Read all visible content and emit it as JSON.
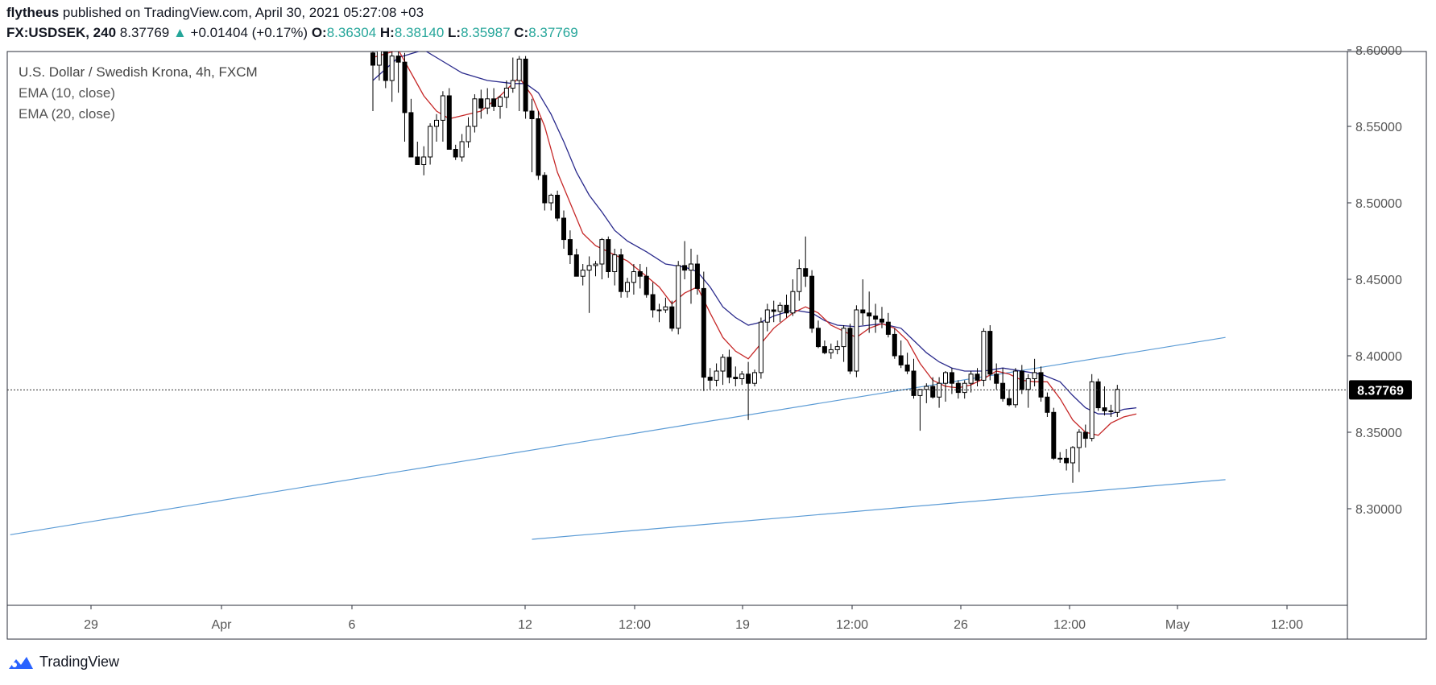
{
  "header": {
    "author": "flytheus",
    "published_text": "published on TradingView.com, April 30, 2021 05:27:08 +03",
    "symbol": "FX:USDSEK, 240",
    "last": "8.37769",
    "change": "+0.01404 (+0.17%)",
    "o_label": "O:",
    "o_value": "8.36304",
    "h_label": "H:",
    "h_value": "8.38140",
    "l_label": "L:",
    "l_value": "8.35987",
    "c_label": "C:",
    "c_value": "8.37769"
  },
  "legend": {
    "title": "U.S. Dollar / Swedish Krona, 4h, FXCM",
    "ema10": "EMA (10, close)",
    "ema20": "EMA (20, close)"
  },
  "footer": {
    "brand": "TradingView"
  },
  "colors": {
    "up_candle_fill": "#ffffff",
    "down_candle_fill": "#000000",
    "ema10": "#c62828",
    "ema20": "#2a2a8c",
    "trendline": "#5b9bd5",
    "last_price_tag": "#000000",
    "up_text": "#26a69a"
  },
  "chart_data": {
    "type": "candlestick",
    "title": "U.S. Dollar / Swedish Krona, 4h, FXCM",
    "ylim": [
      8.28,
      8.6
    ],
    "y_ticks": [
      "8.30000",
      "8.35000",
      "8.40000",
      "8.45000",
      "8.50000",
      "8.55000",
      "8.60000"
    ],
    "x_ticks": [
      "29",
      "Apr",
      "6",
      "12",
      "12:00",
      "19",
      "12:00",
      "26",
      "12:00",
      "May",
      "12:00"
    ],
    "last_price": "8.37769",
    "candles": [
      [
        8.598,
        8.61,
        8.56,
        8.59
      ],
      [
        8.59,
        8.6,
        8.58,
        8.6
      ],
      [
        8.6,
        8.61,
        8.575,
        8.58
      ],
      [
        8.58,
        8.6,
        8.566,
        8.596
      ],
      [
        8.596,
        8.6,
        8.572,
        8.592
      ],
      [
        8.592,
        8.598,
        8.54,
        8.559
      ],
      [
        8.559,
        8.568,
        8.53,
        8.53
      ],
      [
        8.53,
        8.54,
        8.525,
        8.525
      ],
      [
        8.525,
        8.537,
        8.518,
        8.53
      ],
      [
        8.53,
        8.552,
        8.525,
        8.55
      ],
      [
        8.55,
        8.558,
        8.54,
        8.554
      ],
      [
        8.554,
        8.573,
        8.54,
        8.57
      ],
      [
        8.57,
        8.575,
        8.535,
        8.535
      ],
      [
        8.535,
        8.538,
        8.528,
        8.53
      ],
      [
        8.53,
        8.545,
        8.527,
        8.54
      ],
      [
        8.54,
        8.556,
        8.536,
        8.55
      ],
      [
        8.55,
        8.571,
        8.546,
        8.568
      ],
      [
        8.568,
        8.574,
        8.555,
        8.562
      ],
      [
        8.562,
        8.575,
        8.558,
        8.568
      ],
      [
        8.568,
        8.575,
        8.56,
        8.563
      ],
      [
        8.563,
        8.57,
        8.555,
        8.569
      ],
      [
        8.569,
        8.58,
        8.562,
        8.575
      ],
      [
        8.575,
        8.595,
        8.572,
        8.58
      ],
      [
        8.58,
        8.596,
        8.56,
        8.594
      ],
      [
        8.594,
        8.596,
        8.555,
        8.56
      ],
      [
        8.56,
        8.568,
        8.52,
        8.555
      ],
      [
        8.555,
        8.56,
        8.515,
        8.518
      ],
      [
        8.518,
        8.52,
        8.495,
        8.5
      ],
      [
        8.5,
        8.506,
        8.495,
        8.505
      ],
      [
        8.505,
        8.508,
        8.488,
        8.49
      ],
      [
        8.49,
        8.495,
        8.47,
        8.476
      ],
      [
        8.476,
        8.482,
        8.46,
        8.466
      ],
      [
        8.466,
        8.47,
        8.452,
        8.452
      ],
      [
        8.452,
        8.46,
        8.446,
        8.456
      ],
      [
        8.456,
        8.465,
        8.428,
        8.459
      ],
      [
        8.459,
        8.462,
        8.452,
        8.46
      ],
      [
        8.46,
        8.477,
        8.45,
        8.476
      ],
      [
        8.476,
        8.478,
        8.451,
        8.455
      ],
      [
        8.455,
        8.47,
        8.446,
        8.466
      ],
      [
        8.466,
        8.47,
        8.438,
        8.442
      ],
      [
        8.442,
        8.451,
        8.438,
        8.448
      ],
      [
        8.448,
        8.46,
        8.44,
        8.455
      ],
      [
        8.455,
        8.46,
        8.444,
        8.452
      ],
      [
        8.452,
        8.458,
        8.438,
        8.44
      ],
      [
        8.44,
        8.448,
        8.425,
        8.43
      ],
      [
        8.43,
        8.434,
        8.422,
        8.43
      ],
      [
        8.43,
        8.438,
        8.428,
        8.432
      ],
      [
        8.432,
        8.436,
        8.416,
        8.418
      ],
      [
        8.418,
        8.462,
        8.414,
        8.459
      ],
      [
        8.459,
        8.475,
        8.45,
        8.456
      ],
      [
        8.456,
        8.47,
        8.434,
        8.46
      ],
      [
        8.46,
        8.466,
        8.44,
        8.444
      ],
      [
        8.444,
        8.455,
        8.377,
        8.386
      ],
      [
        8.386,
        8.392,
        8.378,
        8.384
      ],
      [
        8.384,
        8.395,
        8.38,
        8.39
      ],
      [
        8.39,
        8.401,
        8.381,
        8.399
      ],
      [
        8.399,
        8.404,
        8.382,
        8.386
      ],
      [
        8.386,
        8.393,
        8.38,
        8.385
      ],
      [
        8.385,
        8.39,
        8.381,
        8.388
      ],
      [
        8.388,
        8.396,
        8.358,
        8.382
      ],
      [
        8.382,
        8.391,
        8.38,
        8.389
      ],
      [
        8.389,
        8.425,
        8.385,
        8.422
      ],
      [
        8.422,
        8.434,
        8.416,
        8.43
      ],
      [
        8.43,
        8.436,
        8.422,
        8.429
      ],
      [
        8.429,
        8.435,
        8.422,
        8.433
      ],
      [
        8.433,
        8.44,
        8.425,
        8.428
      ],
      [
        8.428,
        8.45,
        8.426,
        8.442
      ],
      [
        8.442,
        8.463,
        8.436,
        8.457
      ],
      [
        8.457,
        8.478,
        8.445,
        8.452
      ],
      [
        8.452,
        8.456,
        8.415,
        8.418
      ],
      [
        8.418,
        8.423,
        8.405,
        8.406
      ],
      [
        8.406,
        8.41,
        8.401,
        8.402
      ],
      [
        8.402,
        8.408,
        8.398,
        8.404
      ],
      [
        8.404,
        8.41,
        8.401,
        8.406
      ],
      [
        8.406,
        8.42,
        8.396,
        8.418
      ],
      [
        8.418,
        8.421,
        8.388,
        8.39
      ],
      [
        8.39,
        8.433,
        8.386,
        8.43
      ],
      [
        8.43,
        8.45,
        8.42,
        8.428
      ],
      [
        8.428,
        8.442,
        8.415,
        8.426
      ],
      [
        8.426,
        8.434,
        8.415,
        8.424
      ],
      [
        8.424,
        8.432,
        8.418,
        8.422
      ],
      [
        8.422,
        8.428,
        8.412,
        8.414
      ],
      [
        8.414,
        8.418,
        8.398,
        8.4
      ],
      [
        8.4,
        8.41,
        8.392,
        8.394
      ],
      [
        8.394,
        8.402,
        8.388,
        8.39
      ],
      [
        8.39,
        8.398,
        8.372,
        8.374
      ],
      [
        8.374,
        8.376,
        8.351,
        8.378
      ],
      [
        8.378,
        8.382,
        8.369,
        8.38
      ],
      [
        8.38,
        8.386,
        8.372,
        8.373
      ],
      [
        8.373,
        8.386,
        8.366,
        8.382
      ],
      [
        8.382,
        8.39,
        8.37,
        8.389
      ],
      [
        8.389,
        8.392,
        8.375,
        8.382
      ],
      [
        8.382,
        8.384,
        8.372,
        8.376
      ],
      [
        8.376,
        8.384,
        8.372,
        8.382
      ],
      [
        8.382,
        8.39,
        8.376,
        8.388
      ],
      [
        8.388,
        8.392,
        8.38,
        8.384
      ],
      [
        8.384,
        8.418,
        8.38,
        8.416
      ],
      [
        8.416,
        8.42,
        8.384,
        8.388
      ],
      [
        8.388,
        8.395,
        8.378,
        8.382
      ],
      [
        8.382,
        8.392,
        8.37,
        8.372
      ],
      [
        8.372,
        8.378,
        8.367,
        8.368
      ],
      [
        8.368,
        8.392,
        8.366,
        8.39
      ],
      [
        8.39,
        8.394,
        8.375,
        8.378
      ],
      [
        8.378,
        8.388,
        8.366,
        8.385
      ],
      [
        8.385,
        8.398,
        8.38,
        8.389
      ],
      [
        8.389,
        8.393,
        8.37,
        8.373
      ],
      [
        8.373,
        8.376,
        8.36,
        8.363
      ],
      [
        8.363,
        8.366,
        8.332,
        8.333
      ],
      [
        8.333,
        8.337,
        8.33,
        8.333
      ],
      [
        8.333,
        8.339,
        8.325,
        8.33
      ],
      [
        8.33,
        8.341,
        8.317,
        8.34
      ],
      [
        8.34,
        8.352,
        8.324,
        8.35
      ],
      [
        8.35,
        8.355,
        8.34,
        8.346
      ],
      [
        8.346,
        8.388,
        8.344,
        8.383
      ],
      [
        8.383,
        8.385,
        8.364,
        8.366
      ],
      [
        8.366,
        8.38,
        8.361,
        8.364
      ],
      [
        8.364,
        8.368,
        8.36,
        8.364
      ],
      [
        8.363,
        8.381,
        8.36,
        8.378
      ]
    ],
    "ema10": [
      [
        0,
        8.595
      ],
      [
        4,
        8.6
      ],
      [
        6,
        8.585
      ],
      [
        8,
        8.57
      ],
      [
        10,
        8.56
      ],
      [
        12,
        8.555
      ],
      [
        14,
        8.557
      ],
      [
        17,
        8.56
      ],
      [
        20,
        8.57
      ],
      [
        23,
        8.582
      ],
      [
        25,
        8.57
      ],
      [
        27,
        8.55
      ],
      [
        29,
        8.52
      ],
      [
        31,
        8.5
      ],
      [
        33,
        8.48
      ],
      [
        35,
        8.472
      ],
      [
        37,
        8.468
      ],
      [
        40,
        8.462
      ],
      [
        43,
        8.452
      ],
      [
        45,
        8.445
      ],
      [
        47,
        8.434
      ],
      [
        49,
        8.441
      ],
      [
        51,
        8.445
      ],
      [
        53,
        8.428
      ],
      [
        55,
        8.412
      ],
      [
        57,
        8.403
      ],
      [
        59,
        8.398
      ],
      [
        61,
        8.408
      ],
      [
        63,
        8.418
      ],
      [
        66,
        8.428
      ],
      [
        68,
        8.432
      ],
      [
        70,
        8.428
      ],
      [
        72,
        8.42
      ],
      [
        74,
        8.416
      ],
      [
        76,
        8.412
      ],
      [
        78,
        8.418
      ],
      [
        80,
        8.421
      ],
      [
        82,
        8.418
      ],
      [
        84,
        8.41
      ],
      [
        86,
        8.395
      ],
      [
        88,
        8.384
      ],
      [
        90,
        8.38
      ],
      [
        92,
        8.379
      ],
      [
        94,
        8.381
      ],
      [
        96,
        8.385
      ],
      [
        98,
        8.39
      ],
      [
        100,
        8.388
      ],
      [
        102,
        8.384
      ],
      [
        104,
        8.383
      ],
      [
        106,
        8.383
      ],
      [
        108,
        8.372
      ],
      [
        110,
        8.358
      ],
      [
        112,
        8.35
      ],
      [
        114,
        8.348
      ],
      [
        116,
        8.356
      ],
      [
        118,
        8.36
      ],
      [
        120,
        8.362
      ]
    ],
    "ema20": [
      [
        0,
        8.58
      ],
      [
        4,
        8.595
      ],
      [
        8,
        8.6
      ],
      [
        10,
        8.595
      ],
      [
        14,
        8.585
      ],
      [
        18,
        8.58
      ],
      [
        22,
        8.578
      ],
      [
        24,
        8.578
      ],
      [
        26,
        8.572
      ],
      [
        28,
        8.558
      ],
      [
        30,
        8.54
      ],
      [
        32,
        8.52
      ],
      [
        34,
        8.505
      ],
      [
        36,
        8.494
      ],
      [
        38,
        8.482
      ],
      [
        40,
        8.475
      ],
      [
        43,
        8.468
      ],
      [
        46,
        8.46
      ],
      [
        49,
        8.458
      ],
      [
        51,
        8.455
      ],
      [
        53,
        8.445
      ],
      [
        55,
        8.432
      ],
      [
        57,
        8.425
      ],
      [
        59,
        8.42
      ],
      [
        61,
        8.422
      ],
      [
        63,
        8.426
      ],
      [
        66,
        8.43
      ],
      [
        69,
        8.428
      ],
      [
        71,
        8.423
      ],
      [
        73,
        8.42
      ],
      [
        76,
        8.419
      ],
      [
        78,
        8.42
      ],
      [
        80,
        8.421
      ],
      [
        83,
        8.418
      ],
      [
        85,
        8.41
      ],
      [
        87,
        8.402
      ],
      [
        89,
        8.396
      ],
      [
        91,
        8.392
      ],
      [
        93,
        8.39
      ],
      [
        96,
        8.39
      ],
      [
        99,
        8.392
      ],
      [
        102,
        8.39
      ],
      [
        105,
        8.388
      ],
      [
        108,
        8.383
      ],
      [
        110,
        8.374
      ],
      [
        112,
        8.366
      ],
      [
        114,
        8.362
      ],
      [
        116,
        8.362
      ],
      [
        118,
        8.365
      ],
      [
        120,
        8.366
      ]
    ],
    "trendlines": [
      {
        "from": [
          -57,
          8.283
        ],
        "to": [
          134,
          8.412
        ]
      },
      {
        "from": [
          25,
          8.28
        ],
        "to": [
          134,
          8.319
        ]
      }
    ]
  }
}
